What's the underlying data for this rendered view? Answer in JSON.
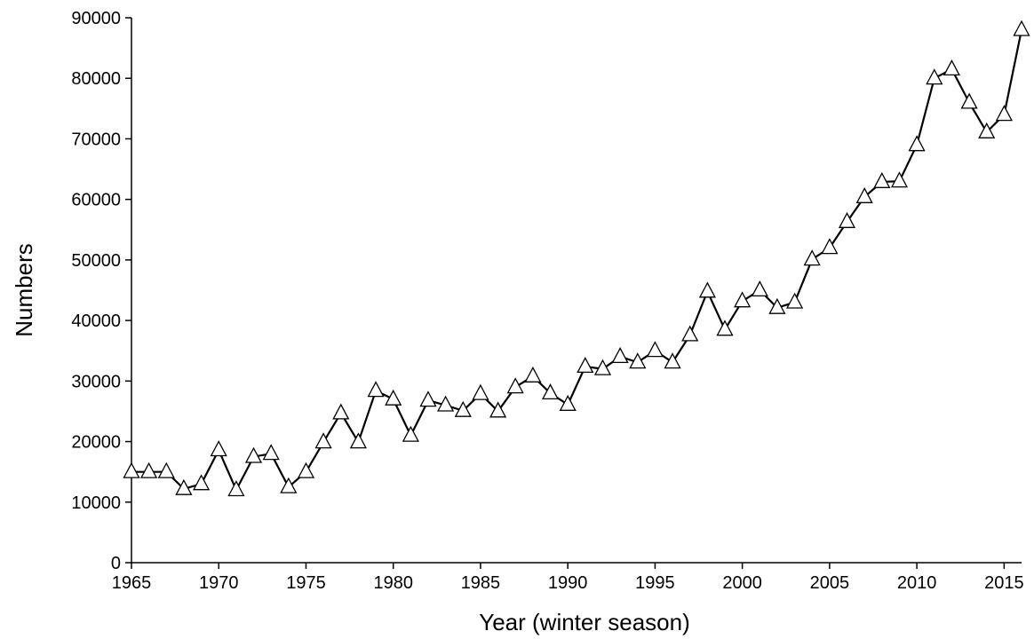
{
  "chart_data": {
    "type": "line",
    "xlabel": "Year (winter season)",
    "ylabel": "Numbers",
    "xlim": [
      1965,
      2016
    ],
    "ylim": [
      0,
      90000
    ],
    "xticks": [
      1965,
      1970,
      1975,
      1980,
      1985,
      1990,
      1995,
      2000,
      2005,
      2010,
      2015
    ],
    "yticks": [
      0,
      10000,
      20000,
      30000,
      40000,
      50000,
      60000,
      70000,
      80000,
      90000
    ],
    "grid": false,
    "series": [
      {
        "marker": "open-triangle",
        "color": "#000000",
        "points": [
          [
            1965,
            15000
          ],
          [
            1966,
            15000
          ],
          [
            1967,
            15000
          ],
          [
            1968,
            12200
          ],
          [
            1969,
            13000
          ],
          [
            1970,
            18600
          ],
          [
            1971,
            12000
          ],
          [
            1972,
            17500
          ],
          [
            1973,
            18000
          ],
          [
            1974,
            12500
          ],
          [
            1975,
            15000
          ],
          [
            1976,
            19900
          ],
          [
            1977,
            24700
          ],
          [
            1978,
            19900
          ],
          [
            1979,
            28400
          ],
          [
            1980,
            27000
          ],
          [
            1981,
            21000
          ],
          [
            1982,
            26800
          ],
          [
            1983,
            26000
          ],
          [
            1984,
            25100
          ],
          [
            1985,
            27900
          ],
          [
            1986,
            25000
          ],
          [
            1987,
            29000
          ],
          [
            1988,
            30800
          ],
          [
            1989,
            28000
          ],
          [
            1990,
            26100
          ],
          [
            1991,
            32400
          ],
          [
            1992,
            32000
          ],
          [
            1993,
            34000
          ],
          [
            1994,
            33100
          ],
          [
            1995,
            35000
          ],
          [
            1996,
            33100
          ],
          [
            1997,
            37600
          ],
          [
            1998,
            44800
          ],
          [
            1999,
            38500
          ],
          [
            2000,
            43200
          ],
          [
            2001,
            45000
          ],
          [
            2002,
            42100
          ],
          [
            2003,
            43000
          ],
          [
            2004,
            50100
          ],
          [
            2005,
            52000
          ],
          [
            2006,
            56300
          ],
          [
            2007,
            60400
          ],
          [
            2008,
            62900
          ],
          [
            2009,
            63000
          ],
          [
            2010,
            69000
          ],
          [
            2011,
            80000
          ],
          [
            2012,
            81500
          ],
          [
            2013,
            76000
          ],
          [
            2014,
            71100
          ],
          [
            2015,
            74000
          ],
          [
            2016,
            88000
          ]
        ]
      }
    ]
  }
}
